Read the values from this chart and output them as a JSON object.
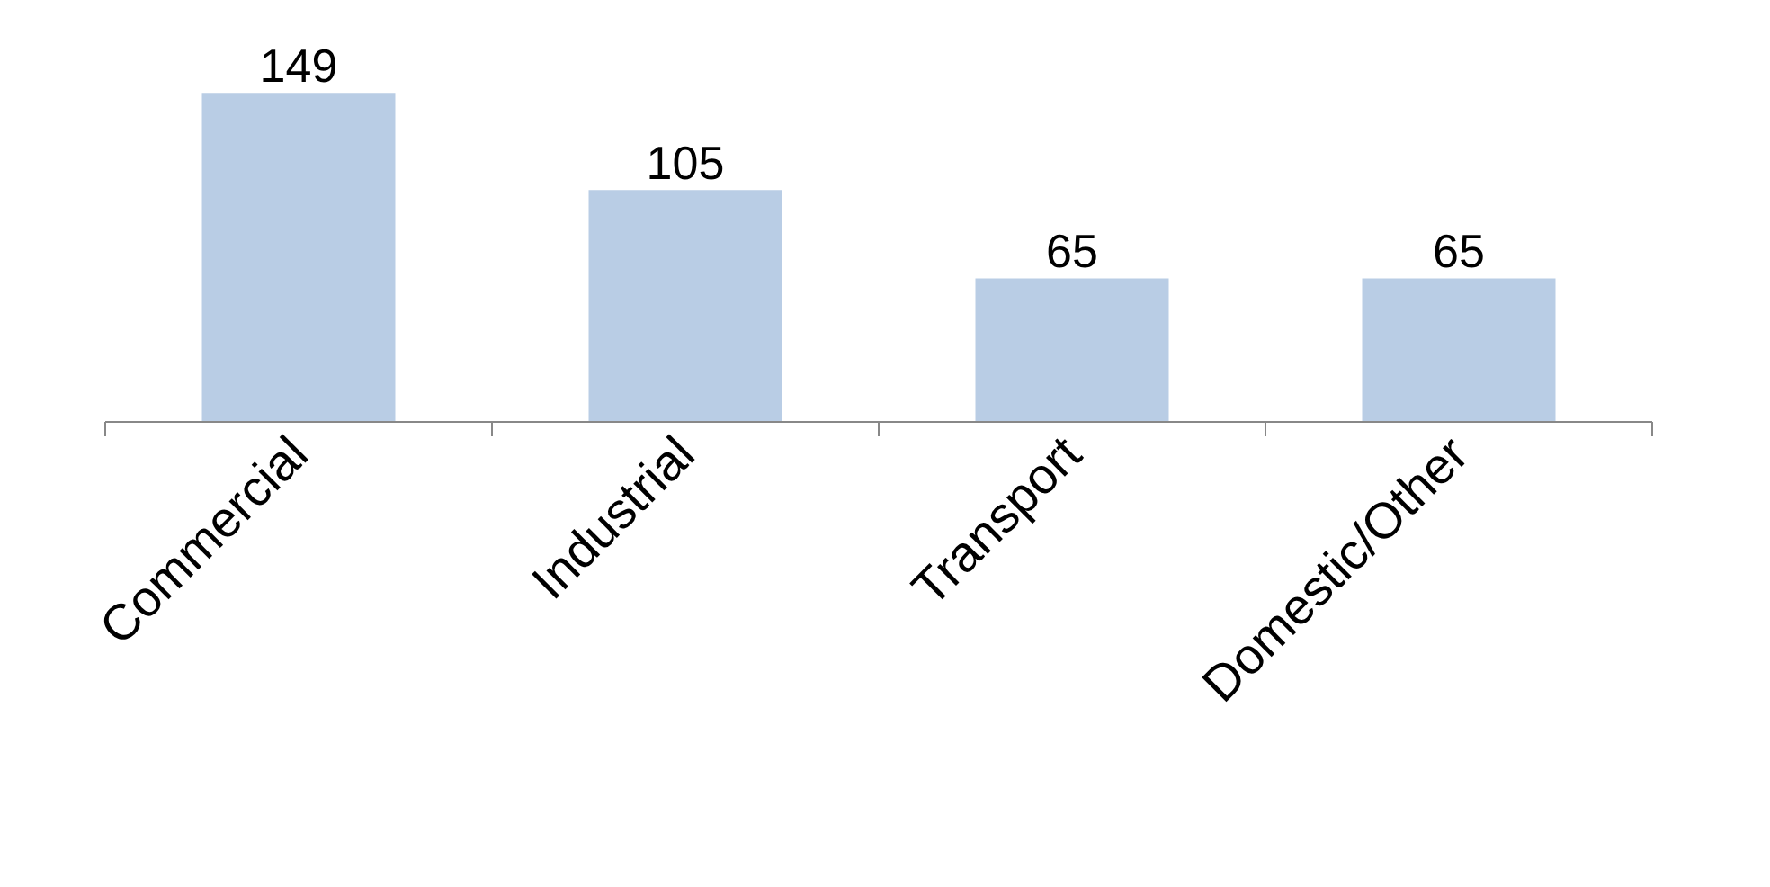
{
  "chart_data": {
    "type": "bar",
    "categories": [
      "Commercial",
      "Industrial",
      "Transport",
      "Domestic/Other"
    ],
    "values": [
      149,
      105,
      65,
      65
    ],
    "color": "#b9cde5",
    "data_labels": true
  }
}
